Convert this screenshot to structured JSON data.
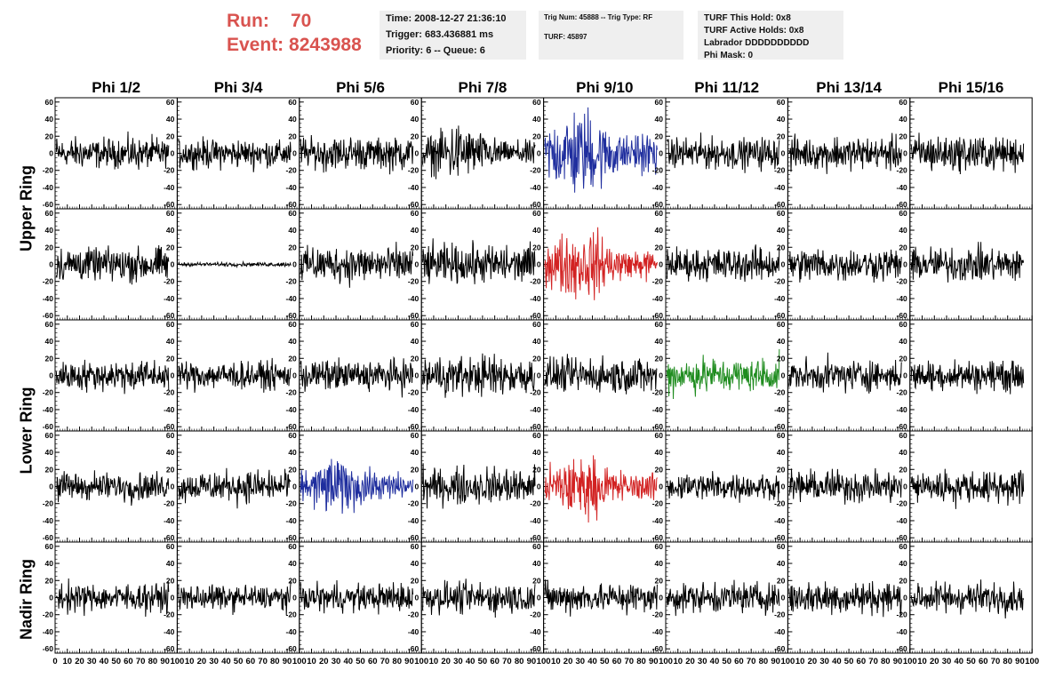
{
  "header": {
    "run_label": "Run:",
    "run_value": "70",
    "event_label": "Event:",
    "event_value": "8243988",
    "time_box": {
      "time": "Time: 2008-12-27 21:36:10",
      "trigger": "Trigger: 683.436881 ms",
      "priority": "Priority: 6 -- Queue: 6"
    },
    "trig_box": {
      "trig": "Trig Num: 45888 -- Trig Type: RF",
      "turf": "TURF: 45897"
    },
    "turf_box": {
      "this_hold": "TURF This Hold: 0x8",
      "active_holds": "TURF Active Holds: 0x8",
      "labrador": "Labrador DDDDDDDDDD",
      "phi_mask": "Phi Mask: 0"
    }
  },
  "rings": {
    "upper": "Upper Ring",
    "lower": "Lower Ring",
    "nadir": "Nadir Ring"
  },
  "chart_data": {
    "type": "line",
    "columns": [
      "Phi 1/2",
      "Phi 3/4",
      "Phi 5/6",
      "Phi 7/8",
      "Phi 9/10",
      "Phi 11/12",
      "Phi 13/14",
      "Phi 15/16"
    ],
    "x_ticks": [
      "0",
      "10",
      "20",
      "30",
      "40",
      "50",
      "60",
      "70",
      "80",
      "90",
      "100"
    ],
    "xlim": [
      0,
      100
    ],
    "y_ticks": [
      "60",
      "40",
      "20",
      "0",
      "-20",
      "-40",
      "-60"
    ],
    "ylim": [
      -65,
      65
    ],
    "grid": false,
    "rows": [
      {
        "ring": "Upper Ring",
        "panels": [
          {
            "color": "#000000",
            "amp": 12
          },
          {
            "color": "#000000",
            "amp": 11
          },
          {
            "color": "#000000",
            "amp": 13
          },
          {
            "color": "#000000",
            "amp": 16
          },
          {
            "color": "#1f2e9e",
            "amp": 26
          },
          {
            "color": "#000000",
            "amp": 12
          },
          {
            "color": "#000000",
            "amp": 13
          },
          {
            "color": "#000000",
            "amp": 14
          }
        ]
      },
      {
        "ring": "Upper Ring",
        "panels": [
          {
            "color": "#000000",
            "amp": 14
          },
          {
            "color": "#000000",
            "amp": 1.5
          },
          {
            "color": "#000000",
            "amp": 14
          },
          {
            "color": "#000000",
            "amp": 15
          },
          {
            "color": "#d22222",
            "amp": 20
          },
          {
            "color": "#000000",
            "amp": 13
          },
          {
            "color": "#000000",
            "amp": 13
          },
          {
            "color": "#000000",
            "amp": 13
          }
        ]
      },
      {
        "ring": "Lower Ring",
        "panels": [
          {
            "color": "#000000",
            "amp": 12
          },
          {
            "color": "#000000",
            "amp": 11
          },
          {
            "color": "#000000",
            "amp": 12
          },
          {
            "color": "#000000",
            "amp": 15
          },
          {
            "color": "#000000",
            "amp": 14
          },
          {
            "color": "#1f8c1f",
            "amp": 14
          },
          {
            "color": "#000000",
            "amp": 12
          },
          {
            "color": "#000000",
            "amp": 12
          }
        ]
      },
      {
        "ring": "Lower Ring",
        "panels": [
          {
            "color": "#000000",
            "amp": 11
          },
          {
            "color": "#000000",
            "amp": 12
          },
          {
            "color": "#1f2e9e",
            "amp": 16
          },
          {
            "color": "#000000",
            "amp": 14
          },
          {
            "color": "#d22222",
            "amp": 18
          },
          {
            "color": "#000000",
            "amp": 11
          },
          {
            "color": "#000000",
            "amp": 12
          },
          {
            "color": "#000000",
            "amp": 13
          }
        ]
      },
      {
        "ring": "Nadir Ring",
        "panels": [
          {
            "color": "#000000",
            "amp": 11
          },
          {
            "color": "#000000",
            "amp": 10
          },
          {
            "color": "#000000",
            "amp": 11
          },
          {
            "color": "#000000",
            "amp": 12
          },
          {
            "color": "#000000",
            "amp": 12
          },
          {
            "color": "#000000",
            "amp": 12
          },
          {
            "color": "#000000",
            "amp": 13
          },
          {
            "color": "#000000",
            "amp": 12
          }
        ]
      }
    ]
  }
}
